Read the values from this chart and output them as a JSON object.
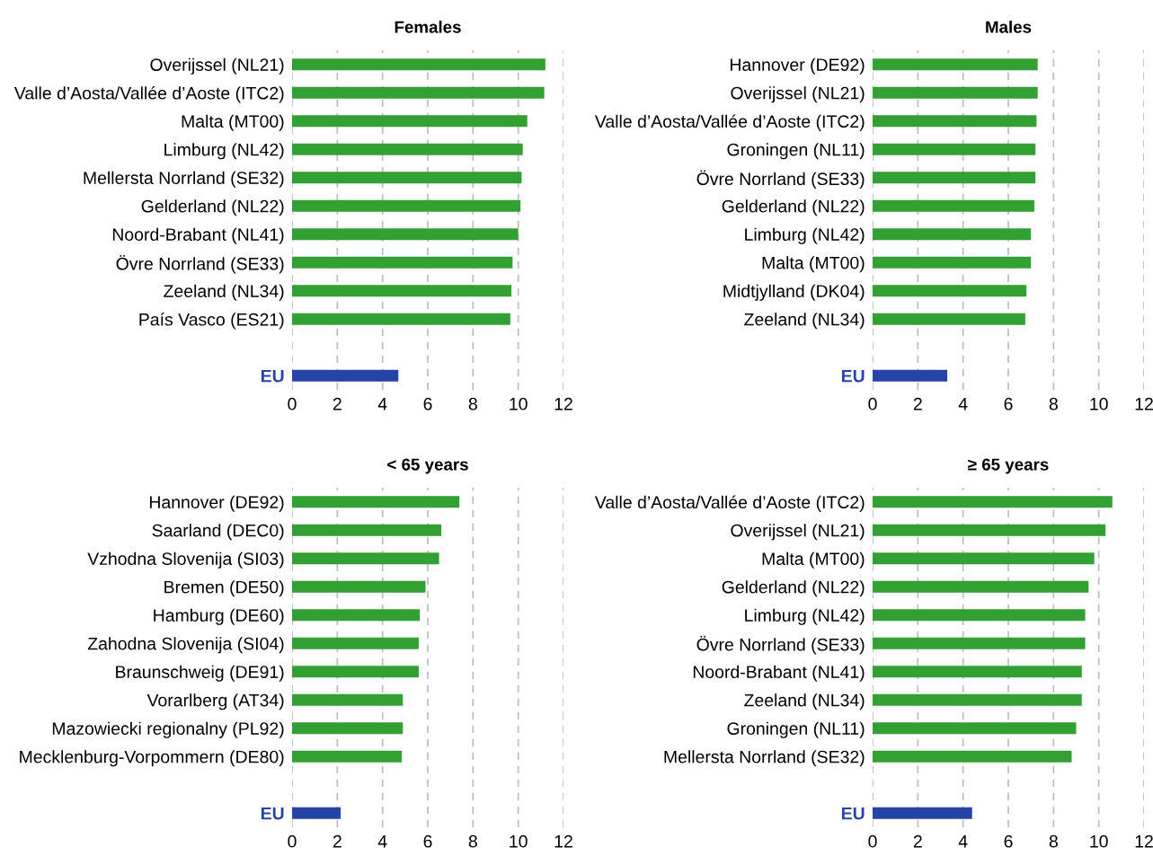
{
  "chart_data": [
    {
      "type": "bar",
      "orientation": "horizontal",
      "title": "Females",
      "categories": [
        "Overijssel (NL21)",
        "Valle d’Aosta/Vallée d’Aoste (ITC2)",
        "Malta (MT00)",
        "Limburg (NL42)",
        "Mellersta Norrland (SE32)",
        "Gelderland (NL22)",
        "Noord-Brabant (NL41)",
        "Övre Norrland (SE33)",
        "Zeeland (NL34)",
        "País Vasco (ES21)",
        null,
        "EU"
      ],
      "values": [
        11.2,
        11.15,
        10.4,
        10.2,
        10.15,
        10.1,
        10.0,
        9.75,
        9.7,
        9.65,
        null,
        4.7
      ],
      "colors": [
        "#33a033",
        "#33a033",
        "#33a033",
        "#33a033",
        "#33a033",
        "#33a033",
        "#33a033",
        "#33a033",
        "#33a033",
        "#33a033",
        null,
        "#2644a8"
      ],
      "xlim": [
        0,
        12
      ],
      "xticks": [
        0,
        2,
        4,
        6,
        8,
        10,
        12
      ],
      "grid": "x"
    },
    {
      "type": "bar",
      "orientation": "horizontal",
      "title": "Males",
      "categories": [
        "Hannover (DE92)",
        "Overijssel (NL21)",
        "Valle d’Aosta/Vallée d’Aoste (ITC2)",
        "Groningen (NL11)",
        "Övre Norrland (SE33)",
        "Gelderland (NL22)",
        "Limburg (NL42)",
        "Malta (MT00)",
        "Midtjylland (DK04)",
        "Zeeland (NL34)",
        null,
        "EU"
      ],
      "values": [
        7.3,
        7.3,
        7.25,
        7.2,
        7.2,
        7.15,
        7.0,
        7.0,
        6.8,
        6.75,
        null,
        3.3
      ],
      "colors": [
        "#33a033",
        "#33a033",
        "#33a033",
        "#33a033",
        "#33a033",
        "#33a033",
        "#33a033",
        "#33a033",
        "#33a033",
        "#33a033",
        null,
        "#2644a8"
      ],
      "xlim": [
        0,
        12
      ],
      "xticks": [
        0,
        2,
        4,
        6,
        8,
        10,
        12
      ],
      "grid": "x"
    },
    {
      "type": "bar",
      "orientation": "horizontal",
      "title": "< 65 years",
      "categories": [
        "Hannover (DE92)",
        "Saarland (DEC0)",
        "Vzhodna Slovenija (SI03)",
        "Bremen (DE50)",
        "Hamburg (DE60)",
        "Zahodna Slovenija (SI04)",
        "Braunschweig (DE91)",
        "Vorarlberg (AT34)",
        "Mazowiecki regionalny (PL92)",
        "Mecklenburg-Vorpommern (DE80)",
        null,
        "EU"
      ],
      "values": [
        7.4,
        6.6,
        6.5,
        5.9,
        5.65,
        5.6,
        5.6,
        4.9,
        4.9,
        4.85,
        null,
        2.15
      ],
      "colors": [
        "#33a033",
        "#33a033",
        "#33a033",
        "#33a033",
        "#33a033",
        "#33a033",
        "#33a033",
        "#33a033",
        "#33a033",
        "#33a033",
        null,
        "#2644a8"
      ],
      "xlim": [
        0,
        12
      ],
      "xticks": [
        0,
        2,
        4,
        6,
        8,
        10,
        12
      ],
      "grid": "x"
    },
    {
      "type": "bar",
      "orientation": "horizontal",
      "title": "≥ 65 years",
      "categories": [
        "Valle d’Aosta/Vallée d’Aoste (ITC2)",
        "Overijssel (NL21)",
        "Malta (MT00)",
        "Gelderland (NL22)",
        "Limburg (NL42)",
        "Övre Norrland (SE33)",
        "Noord-Brabant (NL41)",
        "Zeeland (NL34)",
        "Groningen (NL11)",
        "Mellersta Norrland (SE32)",
        null,
        "EU"
      ],
      "values": [
        10.6,
        10.3,
        9.8,
        9.55,
        9.4,
        9.4,
        9.25,
        9.25,
        9.0,
        8.8,
        null,
        4.4
      ],
      "colors": [
        "#33a033",
        "#33a033",
        "#33a033",
        "#33a033",
        "#33a033",
        "#33a033",
        "#33a033",
        "#33a033",
        "#33a033",
        "#33a033",
        null,
        "#2644a8"
      ],
      "xlim": [
        0,
        12
      ],
      "xticks": [
        0,
        2,
        4,
        6,
        8,
        10,
        12
      ],
      "grid": "x"
    }
  ]
}
